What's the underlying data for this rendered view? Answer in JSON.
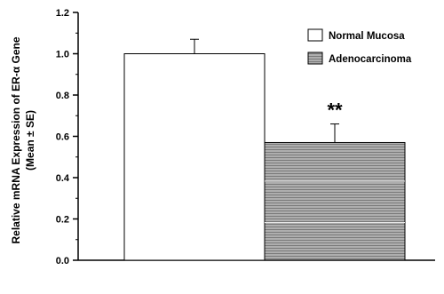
{
  "chart_data": {
    "type": "bar",
    "categories": [
      "Normal Mucosa",
      "Adenocarcinoma"
    ],
    "values": [
      1.0,
      0.57
    ],
    "error_plus": [
      0.07,
      0.09
    ],
    "ylabel_line1": "Relative mRNA Expression of ER-α Gene",
    "ylabel_line2": "(Mean ± SE)",
    "ylim": [
      0,
      1.2
    ],
    "yticks": [
      "0.0",
      "0.2",
      "0.4",
      "0.6",
      "0.8",
      "1.0",
      "1.2"
    ],
    "legend": [
      "Normal Mucosa",
      "Adenocarcinoma"
    ],
    "legend_position": "top-right",
    "annotation": "**",
    "colors": {
      "normal": "#ffffff",
      "adeno": "#9c9c9c",
      "axis": "#000000"
    }
  }
}
